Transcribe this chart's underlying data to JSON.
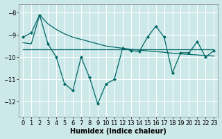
{
  "xlabel": "Humidex (Indice chaleur)",
  "background_color": "#cce8e8",
  "grid_color": "#ffffff",
  "line_color": "#006666",
  "x": [
    0,
    1,
    2,
    3,
    4,
    5,
    6,
    7,
    8,
    9,
    10,
    11,
    12,
    13,
    14,
    15,
    16,
    17,
    18,
    19,
    20,
    21,
    22,
    23
  ],
  "y_zigzag": [
    -9.1,
    -8.9,
    -8.1,
    -9.4,
    -10.0,
    -11.2,
    -11.5,
    -10.0,
    -10.9,
    -12.1,
    -11.2,
    -11.0,
    -9.6,
    -9.7,
    -9.75,
    -9.1,
    -8.6,
    -9.1,
    -10.7,
    -9.8,
    -9.8,
    -9.3,
    -10.0,
    -9.7
  ],
  "y_diagonal": [
    -9.35,
    -9.4,
    -8.1,
    -8.5,
    -8.75,
    -8.95,
    -9.1,
    -9.2,
    -9.3,
    -9.4,
    -9.5,
    -9.55,
    -9.6,
    -9.65,
    -9.68,
    -9.72,
    -9.75,
    -9.78,
    -9.82,
    -9.85,
    -9.88,
    -9.9,
    -9.93,
    -9.95
  ],
  "y_flat": [
    -9.65,
    -9.65,
    -9.65,
    -9.65,
    -9.65,
    -9.65,
    -9.65,
    -9.65,
    -9.65,
    -9.65,
    -9.65,
    -9.65,
    -9.65,
    -9.65,
    -9.65,
    -9.65,
    -9.65,
    -9.65,
    -9.65,
    -9.65,
    -9.65,
    -9.65,
    -9.65,
    -9.65
  ],
  "ylim": [
    -12.7,
    -7.6
  ],
  "yticks": [
    -12,
    -11,
    -10,
    -9,
    -8
  ],
  "xticks": [
    0,
    1,
    2,
    3,
    4,
    5,
    6,
    7,
    8,
    9,
    10,
    11,
    12,
    13,
    14,
    15,
    16,
    17,
    18,
    19,
    20,
    21,
    22,
    23
  ],
  "tick_fontsize": 6.0,
  "xlabel_fontsize": 7.0
}
